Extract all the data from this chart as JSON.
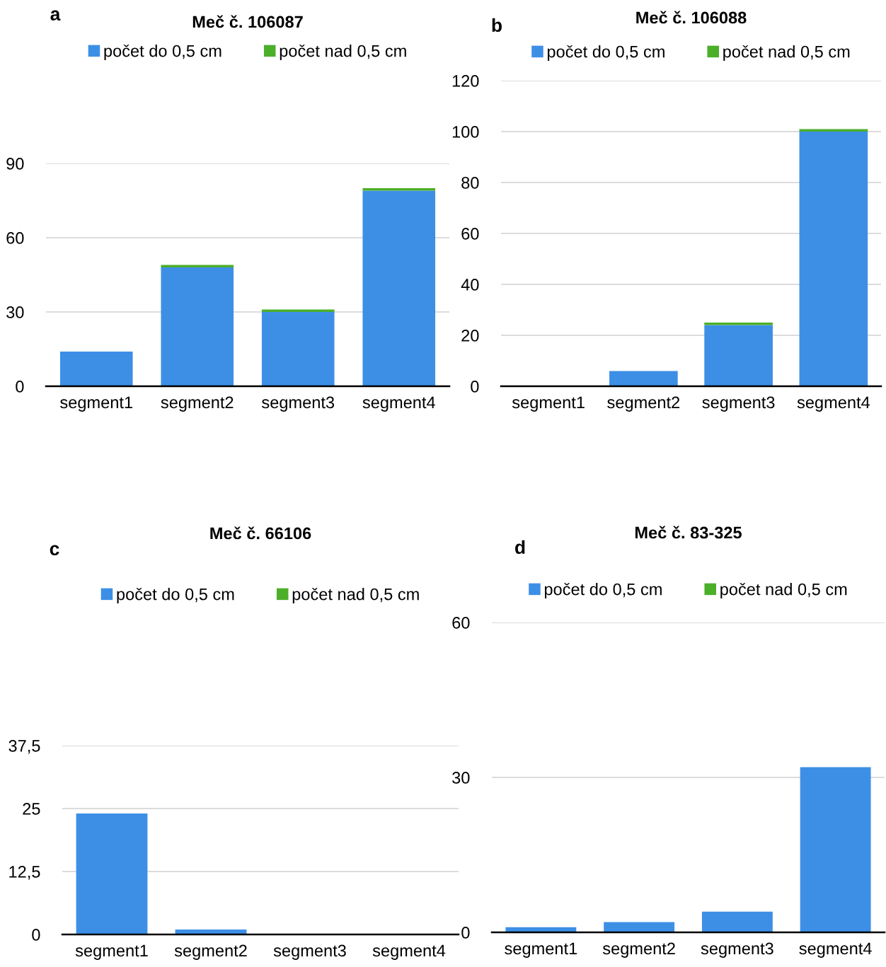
{
  "chart_data": [
    {
      "type": "bar",
      "title": "Meč č. 106087",
      "annotations": [
        "a"
      ],
      "stacked": true,
      "categories": [
        "segment1",
        "segment2",
        "segment3",
        "segment4"
      ],
      "ylim": [
        0,
        90
      ],
      "yticks": [
        0,
        30,
        60,
        90
      ],
      "grid": "y",
      "legend": "top",
      "series": [
        {
          "name": "počet do 0,5 cm",
          "color": "#3d8fe6",
          "values": [
            14,
            48,
            30,
            79
          ]
        },
        {
          "name": "počet nad 0,5 cm",
          "color": "#4caf2a",
          "values": [
            0,
            1,
            1,
            1
          ]
        }
      ]
    },
    {
      "type": "bar",
      "title": "Meč č. 106088",
      "annotations": [
        "b"
      ],
      "stacked": true,
      "categories": [
        "segment1",
        "segment2",
        "segment3",
        "segment4"
      ],
      "ylim": [
        0,
        120
      ],
      "yticks": [
        0,
        20,
        40,
        60,
        80,
        100,
        120
      ],
      "grid": "y",
      "legend": "top",
      "series": [
        {
          "name": "počet do 0,5 cm",
          "color": "#3d8fe6",
          "values": [
            0,
            6,
            24,
            100
          ]
        },
        {
          "name": "počet nad 0,5 cm",
          "color": "#4caf2a",
          "values": [
            0,
            0,
            1,
            1
          ]
        }
      ]
    },
    {
      "type": "bar",
      "title": "Meč č. 66106",
      "annotations": [
        "c"
      ],
      "stacked": true,
      "categories": [
        "segment1",
        "segment2",
        "segment3",
        "segment4"
      ],
      "ylim": [
        0,
        37.5
      ],
      "yticks": [
        0,
        {
          "value": 12.5,
          "label": "12,5"
        },
        25,
        {
          "value": 37.5,
          "label": "37,5"
        }
      ],
      "grid": "y",
      "legend": "top",
      "series": [
        {
          "name": "počet do 0,5 cm",
          "color": "#3d8fe6",
          "values": [
            24,
            1,
            0,
            0
          ]
        },
        {
          "name": "počet nad 0,5 cm",
          "color": "#4caf2a",
          "values": [
            0,
            0,
            0,
            0
          ]
        }
      ]
    },
    {
      "type": "bar",
      "title": "Meč č. 83-325",
      "annotations": [
        "d"
      ],
      "stacked": true,
      "categories": [
        "segment1",
        "segment2",
        "segment3",
        "segment4"
      ],
      "ylim": [
        0,
        60
      ],
      "yticks": [
        0,
        30,
        60
      ],
      "grid": "y",
      "legend": "top",
      "series": [
        {
          "name": "počet do 0,5 cm",
          "color": "#3d8fe6",
          "values": [
            1,
            2,
            4,
            32
          ]
        },
        {
          "name": "počet nad 0,5 cm",
          "color": "#4caf2a",
          "values": [
            0,
            0,
            0,
            0
          ]
        }
      ]
    }
  ]
}
